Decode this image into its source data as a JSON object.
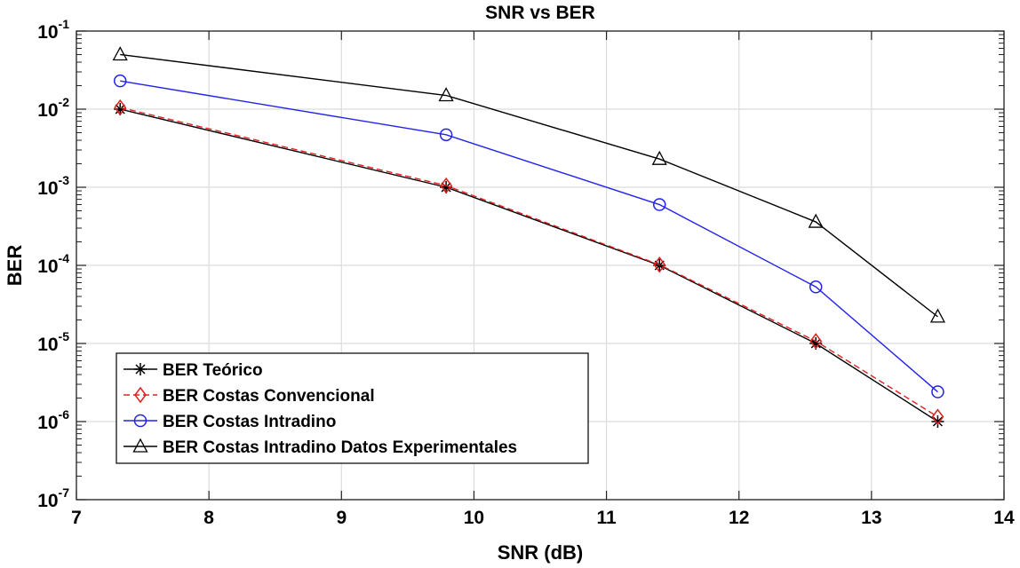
{
  "chart_data": {
    "type": "line",
    "title": "SNR vs BER",
    "xlabel": "SNR (dB)",
    "ylabel": "BER",
    "yscale": "log",
    "xlim": [
      7,
      14
    ],
    "ylim": [
      1e-07,
      0.1
    ],
    "grid": true,
    "x_ticks": [
      7,
      8,
      9,
      10,
      11,
      12,
      13,
      14
    ],
    "y_ticks": [
      {
        "value": 0.1,
        "base": "10",
        "exp": "-1"
      },
      {
        "value": 0.01,
        "base": "10",
        "exp": "-2"
      },
      {
        "value": 0.001,
        "base": "10",
        "exp": "-3"
      },
      {
        "value": 0.0001,
        "base": "10",
        "exp": "-4"
      },
      {
        "value": 1e-05,
        "base": "10",
        "exp": "-5"
      },
      {
        "value": 1e-06,
        "base": "10",
        "exp": "-6"
      },
      {
        "value": 1e-07,
        "base": "10",
        "exp": "-7"
      }
    ],
    "legend_position": "bottom-left",
    "series": [
      {
        "name": "BER Teórico",
        "color": "#000000",
        "marker": "asterisk",
        "dash": "solid",
        "x": [
          7.33,
          9.79,
          11.4,
          12.58,
          13.5
        ],
        "y": [
          0.01,
          0.001,
          0.0001,
          1e-05,
          1e-06
        ]
      },
      {
        "name": "BER Costas Convencional",
        "color": "#e02020",
        "marker": "diamond",
        "dash": "dashed",
        "x": [
          7.33,
          9.79,
          11.4,
          12.58,
          13.5
        ],
        "y": [
          0.0105,
          0.00105,
          0.000102,
          1.07e-05,
          1.15e-06
        ]
      },
      {
        "name": "BER Costas Intradino",
        "color": "#2222ee",
        "marker": "circle",
        "dash": "solid",
        "x": [
          7.33,
          9.79,
          11.4,
          12.58,
          13.5
        ],
        "y": [
          0.023,
          0.0047,
          0.0006,
          5.3e-05,
          2.4e-06
        ]
      },
      {
        "name": "BER Costas Intradino Datos Experimentales",
        "color": "#000000",
        "marker": "triangle",
        "dash": "solid",
        "x": [
          7.33,
          9.79,
          11.4,
          12.58,
          13.5
        ],
        "y": [
          0.05,
          0.015,
          0.0023,
          0.00036,
          2.2e-05
        ]
      }
    ]
  }
}
